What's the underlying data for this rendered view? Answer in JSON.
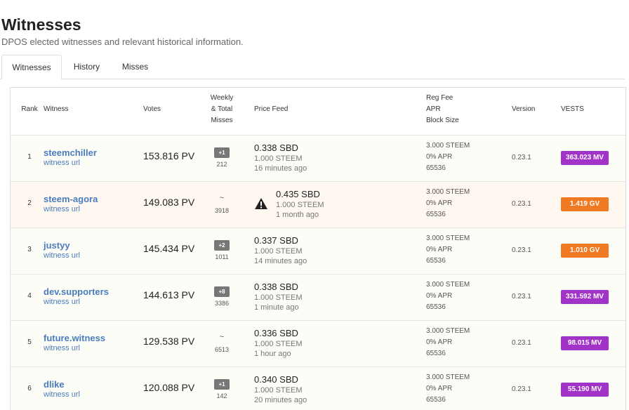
{
  "header": {
    "title": "Witnesses",
    "subtitle": "DPOS elected witnesses and relevant historical information."
  },
  "tabs": {
    "items": [
      "Witnesses",
      "History",
      "Misses"
    ],
    "active": 0
  },
  "table": {
    "columns": [
      [
        "Rank"
      ],
      [
        "Witness"
      ],
      [
        "Votes"
      ],
      [
        "Weekly",
        "& Total",
        "Misses"
      ],
      [
        "Price Feed"
      ],
      [
        "Reg Fee",
        "APR",
        "Block Size"
      ],
      [
        "Version"
      ],
      [
        "VESTS"
      ]
    ],
    "rows": [
      {
        "rank": "1",
        "name": "steemchiller",
        "link": "witness url",
        "votes": "153.816 PV",
        "weekly": "+1",
        "total": "212",
        "price": "0.338 SBD",
        "base": "1.000 STEEM",
        "age": "16 minutes ago",
        "warning": false,
        "fee": "3.000 STEEM",
        "apr": "0% APR",
        "block_size": "65536",
        "version": "0.23.1",
        "vests": "363.023 MV",
        "vests_color": "#a233c9"
      },
      {
        "rank": "2",
        "name": "steem-agora",
        "link": "witness url",
        "votes": "149.083 PV",
        "weekly": "~",
        "total": "3918",
        "price": "0.435 SBD",
        "base": "1.000 STEEM",
        "age": "1 month ago",
        "warning": true,
        "fee": "3.000 STEEM",
        "apr": "0% APR",
        "block_size": "65536",
        "version": "0.23.1",
        "vests": "1.419 GV",
        "vests_color": "#f07a22"
      },
      {
        "rank": "3",
        "name": "justyy",
        "link": "witness url",
        "votes": "145.434 PV",
        "weekly": "+2",
        "total": "1011",
        "price": "0.337 SBD",
        "base": "1.000 STEEM",
        "age": "14 minutes ago",
        "warning": false,
        "fee": "3.000 STEEM",
        "apr": "0% APR",
        "block_size": "65536",
        "version": "0.23.1",
        "vests": "1.010 GV",
        "vests_color": "#f07a22"
      },
      {
        "rank": "4",
        "name": "dev.supporters",
        "link": "witness url",
        "votes": "144.613 PV",
        "weekly": "+8",
        "total": "3386",
        "price": "0.338 SBD",
        "base": "1.000 STEEM",
        "age": "1 minute ago",
        "warning": false,
        "fee": "3.000 STEEM",
        "apr": "0% APR",
        "block_size": "65536",
        "version": "0.23.1",
        "vests": "331.592 MV",
        "vests_color": "#a233c9"
      },
      {
        "rank": "5",
        "name": "future.witness",
        "link": "witness url",
        "votes": "129.538 PV",
        "weekly": "~",
        "total": "6513",
        "price": "0.336 SBD",
        "base": "1.000 STEEM",
        "age": "1 hour ago",
        "warning": false,
        "fee": "3.000 STEEM",
        "apr": "0% APR",
        "block_size": "65536",
        "version": "0.23.1",
        "vests": "98.015 MV",
        "vests_color": "#a233c9"
      },
      {
        "rank": "6",
        "name": "dlike",
        "link": "witness url",
        "votes": "120.088 PV",
        "weekly": "+1",
        "total": "142",
        "price": "0.340 SBD",
        "base": "1.000 STEEM",
        "age": "20 minutes ago",
        "warning": false,
        "fee": "3.000 STEEM",
        "apr": "0% APR",
        "block_size": "65536",
        "version": "0.23.1",
        "vests": "55.190 MV",
        "vests_color": "#a233c9"
      }
    ]
  }
}
